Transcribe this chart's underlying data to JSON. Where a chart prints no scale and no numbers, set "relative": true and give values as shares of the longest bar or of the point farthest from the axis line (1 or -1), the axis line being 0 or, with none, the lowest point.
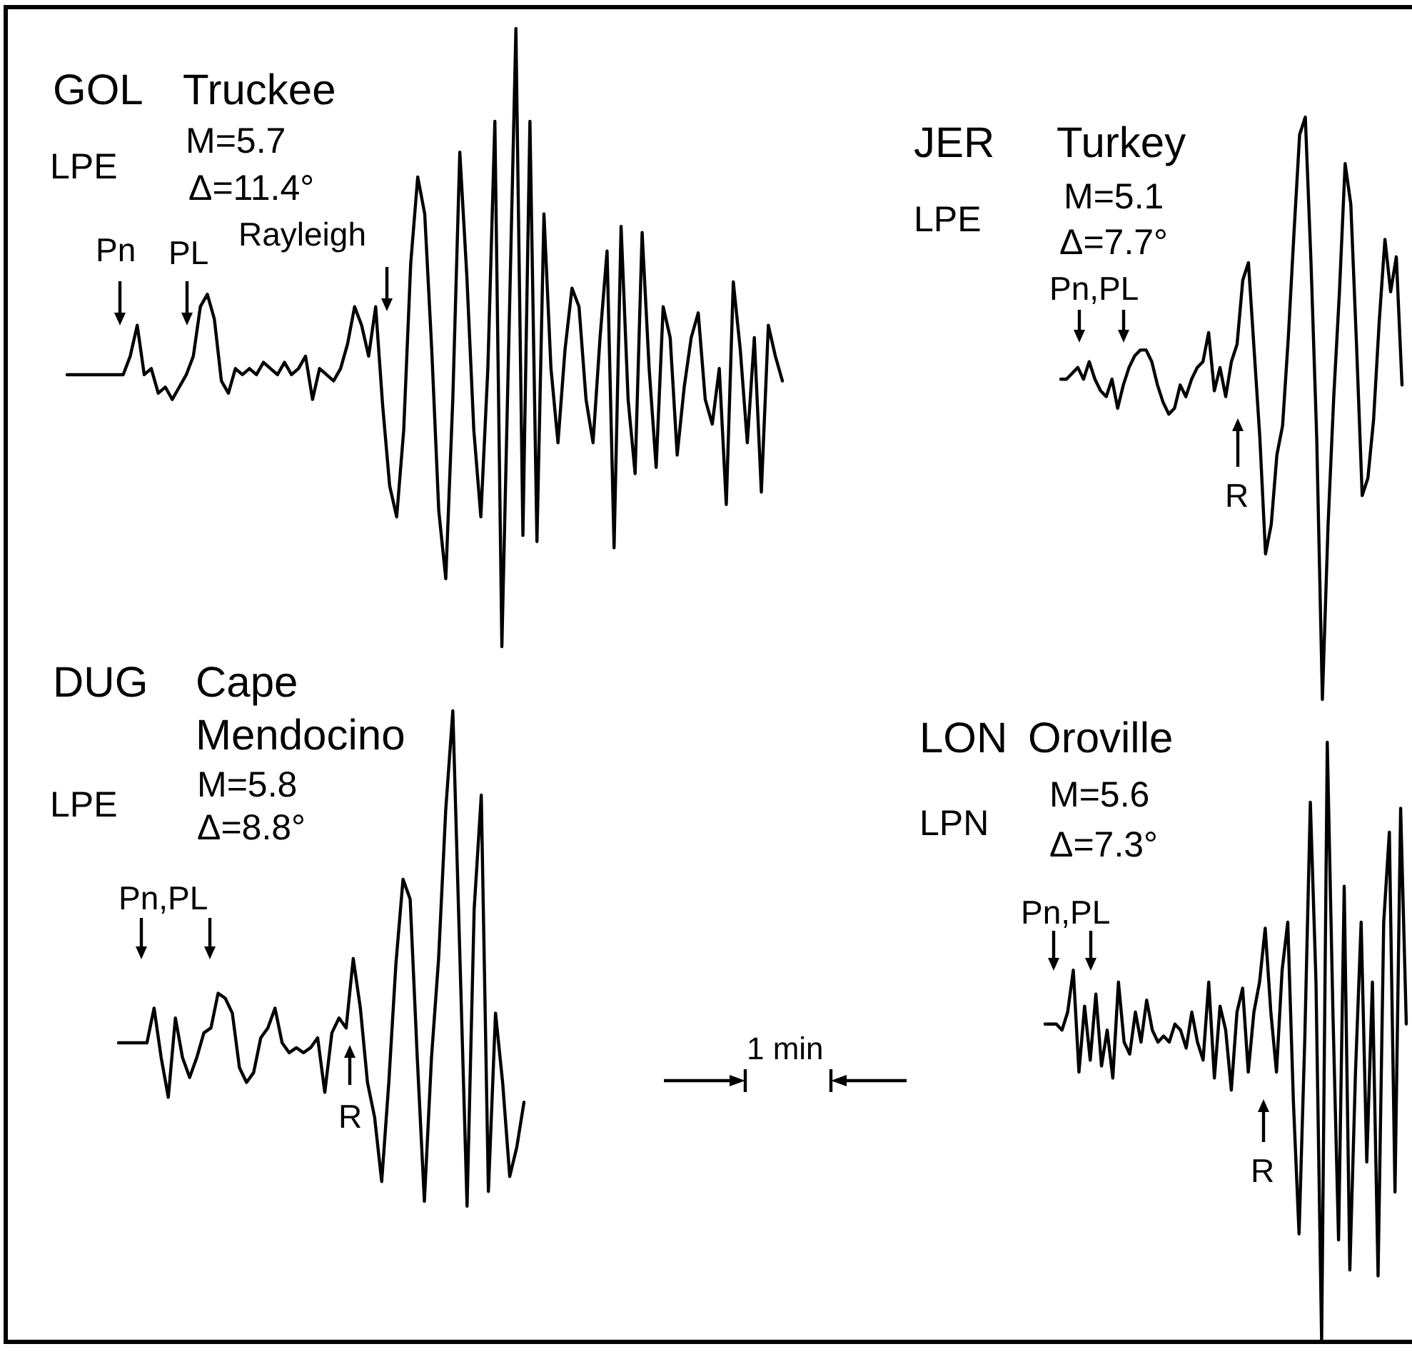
{
  "chart_data": [
    {
      "type": "line",
      "relative": true,
      "title": "GOL",
      "subtitle": "Truckee",
      "ylabel": "LPE",
      "color": "#000000",
      "categories": [
        null,
        null,
        null,
        null,
        null,
        null,
        null,
        null,
        null,
        null,
        null,
        null,
        null,
        null,
        null,
        null,
        null,
        null,
        null,
        null,
        null,
        null,
        null,
        null,
        null,
        null,
        null,
        null,
        null,
        null,
        null,
        null,
        null,
        null,
        null,
        null,
        null,
        null,
        null,
        null,
        null,
        null,
        null,
        null,
        null,
        null,
        null,
        null,
        null,
        null,
        null,
        null,
        null,
        null,
        null,
        null,
        null,
        null,
        null,
        null,
        null,
        null,
        null,
        null,
        null,
        null,
        null,
        null,
        null,
        null,
        null,
        null,
        null,
        null,
        null,
        null,
        null,
        null,
        null,
        null,
        null,
        null,
        null,
        null,
        null,
        null,
        null,
        null,
        null,
        null,
        null,
        null,
        null,
        null,
        null,
        null,
        null,
        null,
        null,
        null,
        null,
        null,
        null
      ],
      "values": [
        0.44,
        0.44,
        0.44,
        0.44,
        0.44,
        0.44,
        0.44,
        0.44,
        0.44,
        0.47,
        0.52,
        0.44,
        0.45,
        0.41,
        0.42,
        0.4,
        0.42,
        0.44,
        0.47,
        0.55,
        0.57,
        0.53,
        0.43,
        0.41,
        0.45,
        0.44,
        0.45,
        0.44,
        0.46,
        0.45,
        0.44,
        0.46,
        0.44,
        0.45,
        0.47,
        0.4,
        0.45,
        0.44,
        0.43,
        0.45,
        0.49,
        0.55,
        0.52,
        0.47,
        0.55,
        0.39,
        0.26,
        0.21,
        0.35,
        0.62,
        0.76,
        0.7,
        0.48,
        0.22,
        0.11,
        0.4,
        0.8,
        0.6,
        0.35,
        0.21,
        0.45,
        0.85,
        0.0,
        0.5,
        1.0,
        0.18,
        0.85,
        0.17,
        0.7,
        0.45,
        0.33,
        0.48,
        0.58,
        0.55,
        0.4,
        0.33,
        0.5,
        0.64,
        0.16,
        0.68,
        0.4,
        0.28,
        0.67,
        0.45,
        0.29,
        0.55,
        0.5,
        0.31,
        0.42,
        0.5,
        0.54,
        0.4,
        0.36,
        0.45,
        0.23,
        0.59,
        0.48,
        0.33,
        0.5,
        0.25,
        0.52,
        0.47,
        0.43
      ],
      "annotations": [
        "M=5.7",
        "Δ=11.4°",
        "Pn",
        "PL",
        "Rayleigh"
      ]
    },
    {
      "type": "line",
      "relative": true,
      "title": "JER",
      "subtitle": "Turkey",
      "ylabel": "LPE",
      "color": "#000000",
      "categories": [
        null,
        null,
        null,
        null,
        null,
        null,
        null,
        null,
        null,
        null,
        null,
        null,
        null,
        null,
        null,
        null,
        null,
        null,
        null,
        null,
        null,
        null,
        null,
        null,
        null,
        null,
        null,
        null,
        null,
        null,
        null,
        null,
        null,
        null,
        null,
        null,
        null,
        null,
        null,
        null,
        null,
        null,
        null,
        null,
        null,
        null,
        null,
        null,
        null,
        null,
        null,
        null,
        null,
        null,
        null,
        null,
        null,
        null,
        null,
        null,
        null
      ],
      "values": [
        0.55,
        0.55,
        0.56,
        0.57,
        0.55,
        0.58,
        0.55,
        0.53,
        0.52,
        0.55,
        0.5,
        0.54,
        0.57,
        0.59,
        0.6,
        0.6,
        0.58,
        0.54,
        0.51,
        0.49,
        0.5,
        0.54,
        0.52,
        0.55,
        0.57,
        0.58,
        0.63,
        0.53,
        0.57,
        0.52,
        0.58,
        0.61,
        0.72,
        0.75,
        0.6,
        0.45,
        0.25,
        0.3,
        0.42,
        0.47,
        0.62,
        0.8,
        0.97,
        1.0,
        0.75,
        0.45,
        0.0,
        0.3,
        0.52,
        0.7,
        0.92,
        0.85,
        0.61,
        0.35,
        0.38,
        0.48,
        0.65,
        0.79,
        0.7,
        0.76,
        0.54
      ],
      "annotations": [
        "M=5.1",
        "Δ=7.7°",
        "Pn,PL",
        "R"
      ]
    },
    {
      "type": "line",
      "relative": true,
      "title": "DUG",
      "subtitle": "Cape Mendocino",
      "ylabel": "LPE",
      "color": "#000000",
      "categories": [
        null,
        null,
        null,
        null,
        null,
        null,
        null,
        null,
        null,
        null,
        null,
        null,
        null,
        null,
        null,
        null,
        null,
        null,
        null,
        null,
        null,
        null,
        null,
        null,
        null,
        null,
        null,
        null,
        null,
        null,
        null,
        null,
        null,
        null,
        null,
        null,
        null,
        null,
        null,
        null,
        null,
        null,
        null,
        null,
        null,
        null,
        null,
        null,
        null,
        null,
        null,
        null,
        null,
        null,
        null,
        null,
        null,
        null
      ],
      "values": [
        0.33,
        0.33,
        0.33,
        0.33,
        0.33,
        0.4,
        0.3,
        0.22,
        0.38,
        0.3,
        0.26,
        0.3,
        0.35,
        0.36,
        0.43,
        0.42,
        0.39,
        0.28,
        0.25,
        0.27,
        0.34,
        0.36,
        0.4,
        0.33,
        0.31,
        0.32,
        0.31,
        0.32,
        0.34,
        0.23,
        0.35,
        0.38,
        0.36,
        0.5,
        0.4,
        0.25,
        0.18,
        0.05,
        0.25,
        0.49,
        0.66,
        0.62,
        0.3,
        0.01,
        0.3,
        0.5,
        0.8,
        1.0,
        0.5,
        0.0,
        0.6,
        0.83,
        0.03,
        0.39,
        0.25,
        0.06,
        0.12,
        0.21
      ],
      "annotations": [
        "M=5.8",
        "Δ=8.8°",
        "Pn,PL",
        "R"
      ]
    },
    {
      "type": "line",
      "relative": true,
      "title": "LON",
      "subtitle": "Oroville",
      "ylabel": "LPN",
      "color": "#000000",
      "categories": [
        null,
        null,
        null,
        null,
        null,
        null,
        null,
        null,
        null,
        null,
        null,
        null,
        null,
        null,
        null,
        null,
        null,
        null,
        null,
        null,
        null,
        null,
        null,
        null,
        null,
        null,
        null,
        null,
        null,
        null,
        null,
        null,
        null,
        null,
        null,
        null,
        null,
        null,
        null,
        null,
        null,
        null,
        null,
        null,
        null,
        null,
        null,
        null,
        null,
        null,
        null,
        null,
        null,
        null,
        null,
        null,
        null,
        null,
        null,
        null,
        null,
        null,
        null,
        null,
        null
      ],
      "values": [
        0.53,
        0.53,
        0.53,
        0.52,
        0.55,
        0.62,
        0.45,
        0.56,
        0.47,
        0.58,
        0.46,
        0.52,
        0.44,
        0.6,
        0.5,
        0.48,
        0.55,
        0.5,
        0.57,
        0.52,
        0.5,
        0.51,
        0.5,
        0.53,
        0.52,
        0.49,
        0.55,
        0.5,
        0.47,
        0.6,
        0.44,
        0.56,
        0.52,
        0.42,
        0.55,
        0.59,
        0.45,
        0.55,
        0.6,
        0.69,
        0.55,
        0.45,
        0.62,
        0.7,
        0.4,
        0.18,
        0.5,
        0.9,
        0.6,
        0.0,
        1.0,
        0.55,
        0.17,
        0.76,
        0.12,
        0.45,
        0.7,
        0.3,
        0.6,
        0.11,
        0.7,
        0.85,
        0.25,
        0.89,
        0.53
      ],
      "annotations": [
        "M=5.6",
        "Δ=7.3°",
        "Pn,PL",
        "R"
      ]
    },
    {
      "type": "other",
      "annotations": [
        "1 min"
      ]
    }
  ]
}
